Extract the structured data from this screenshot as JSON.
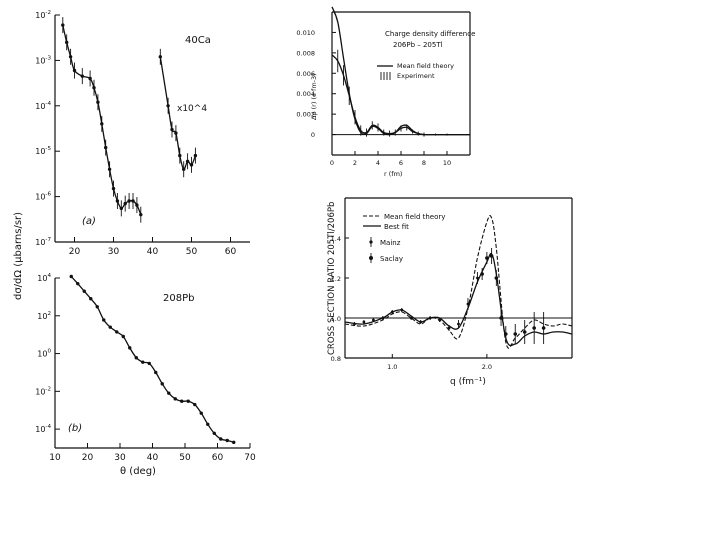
{
  "chart_data": [
    {
      "id": "ca40",
      "type": "scatter",
      "panel_label": "(a)",
      "nucleus": "40Ca",
      "annotation": "x10^4",
      "ylabel": "dσ/dΩ (μbarns/sr)",
      "y_scale": "log",
      "ylim": [
        1e-07,
        0.01
      ],
      "xlim": [
        15,
        65
      ],
      "xticks": [
        20,
        30,
        40,
        50,
        60
      ],
      "yticks": [
        "10^-2",
        "10^-3",
        "10^-4",
        "10^-5",
        "10^-6",
        "10^-7"
      ],
      "series": [
        {
          "points": [
            [
              17,
              0.006
            ],
            [
              18,
              0.0025
            ],
            [
              19,
              0.0012
            ],
            [
              20,
              0.0006
            ],
            [
              22,
              0.00045
            ],
            [
              24,
              0.0004
            ],
            [
              25,
              0.00025
            ],
            [
              26,
              0.00012
            ],
            [
              27,
              4e-05
            ],
            [
              28,
              1.2e-05
            ],
            [
              29,
              4e-06
            ],
            [
              30,
              1.5e-06
            ],
            [
              31,
              8e-07
            ],
            [
              32,
              5.5e-07
            ],
            [
              33,
              7e-07
            ],
            [
              34,
              8e-07
            ],
            [
              35,
              8e-07
            ],
            [
              36,
              6.5e-07
            ],
            [
              37,
              4e-07
            ]
          ]
        },
        {
          "points": [
            [
              42,
              0.0012
            ],
            [
              44,
              0.0001
            ],
            [
              45,
              3e-05
            ],
            [
              46,
              2.5e-05
            ],
            [
              47,
              8e-06
            ],
            [
              48,
              4e-06
            ],
            [
              49,
              6e-06
            ],
            [
              50,
              5e-06
            ],
            [
              51,
              8e-06
            ]
          ]
        }
      ]
    },
    {
      "id": "pb208",
      "type": "scatter",
      "panel_label": "(b)",
      "nucleus": "208Pb",
      "xlabel": "θ (deg)",
      "y_scale": "log",
      "ylim": [
        1e-05,
        10000.0
      ],
      "xlim": [
        10,
        70
      ],
      "xticks": [
        10,
        20,
        30,
        40,
        50,
        60,
        70
      ],
      "yticks": [
        "10^4",
        "10^2",
        "10^0",
        "10^-2",
        "10^-4"
      ],
      "series": [
        {
          "points": [
            [
              15,
              12000
            ],
            [
              17,
              5000
            ],
            [
              19,
              2000
            ],
            [
              21,
              800
            ],
            [
              23,
              300
            ],
            [
              25,
              60
            ],
            [
              27,
              25
            ],
            [
              29,
              14
            ],
            [
              31,
              8
            ],
            [
              33,
              2
            ],
            [
              35,
              0.6
            ],
            [
              37,
              0.35
            ],
            [
              39,
              0.3
            ],
            [
              41,
              0.1
            ],
            [
              43,
              0.025
            ],
            [
              45,
              0.008
            ],
            [
              47,
              0.004
            ],
            [
              49,
              0.003
            ],
            [
              51,
              0.003
            ],
            [
              53,
              0.002
            ],
            [
              55,
              0.0007
            ],
            [
              57,
              0.00018
            ],
            [
              59,
              6e-05
            ],
            [
              61,
              3e-05
            ],
            [
              63,
              2.5e-05
            ],
            [
              65,
              2e-05
            ]
          ]
        }
      ]
    },
    {
      "id": "density",
      "type": "line",
      "title": "Charge density difference",
      "subtitle": "206Pb – 205Tl",
      "xlabel": "r (fm)",
      "ylabel": "Δρ (r) (e fm-3)",
      "xlim": [
        0,
        12
      ],
      "ylim": [
        -0.002,
        0.012
      ],
      "xticks": [
        0,
        2,
        4,
        6,
        8,
        10
      ],
      "yticks": [
        0,
        0.002,
        0.004,
        0.006,
        0.008,
        0.01
      ],
      "legend": [
        "Mean field theory",
        "Experiment"
      ],
      "theory": {
        "x": [
          0,
          0.5,
          1,
          1.5,
          2,
          2.5,
          3,
          3.5,
          4,
          4.5,
          5,
          5.5,
          6,
          6.5,
          7,
          7.5,
          8,
          9,
          10,
          11,
          12
        ],
        "y": [
          0.0125,
          0.011,
          0.0075,
          0.004,
          0.0015,
          0.0002,
          0.0001,
          0.0008,
          0.0006,
          0.0001,
          0,
          0.0002,
          0.0008,
          0.0009,
          0.0004,
          0.0001,
          0,
          0,
          0,
          0,
          0
        ]
      },
      "experiment": {
        "x": [
          0,
          0.5,
          1,
          1.5,
          2,
          2.5,
          3,
          3.5,
          4,
          4.5,
          5,
          5.5,
          6,
          6.5,
          7,
          7.5,
          8,
          9,
          10,
          11,
          12
        ],
        "y": [
          0.0078,
          0.0072,
          0.0058,
          0.0038,
          0.0017,
          0.0004,
          0.0002,
          0.0009,
          0.0007,
          0.0002,
          0.0001,
          0.0002,
          0.0006,
          0.0007,
          0.0003,
          0.0001,
          0,
          0,
          0,
          0,
          0
        ],
        "err": [
          0.0012,
          0.0011,
          0.001,
          0.0009,
          0.0007,
          0.0005,
          0.0004,
          0.0004,
          0.0004,
          0.0003,
          0.0003,
          0.0003,
          0.0003,
          0.0003,
          0.0002,
          0.0002,
          0.0002,
          0.0001,
          0.0001,
          0,
          0
        ]
      }
    },
    {
      "id": "ratio",
      "type": "line",
      "xlabel": "q (fm⁻¹)",
      "ylabel": "CROSS SECTION RATIO 205Tl/206Pb",
      "xlim": [
        0.5,
        2.9
      ],
      "ylim": [
        0.8,
        1.6
      ],
      "xticks": [
        1.0,
        2.0
      ],
      "yticks": [
        0.8,
        1.0,
        1.2,
        1.4
      ],
      "legend": [
        "Mean field theory",
        "Best fit",
        "Mainz",
        "Saclay"
      ],
      "mean_field": {
        "x": [
          0.5,
          0.7,
          0.9,
          1.0,
          1.1,
          1.2,
          1.3,
          1.4,
          1.5,
          1.6,
          1.7,
          1.8,
          1.9,
          2.0,
          2.05,
          2.1,
          2.2,
          2.3,
          2.4,
          2.5,
          2.6,
          2.7,
          2.8,
          2.9
        ],
        "y": [
          0.97,
          0.96,
          0.99,
          1.02,
          1.03,
          1.0,
          0.97,
          1.0,
          0.99,
          0.94,
          0.9,
          1.05,
          1.3,
          1.48,
          1.5,
          1.35,
          0.88,
          0.9,
          0.95,
          0.99,
          0.97,
          0.96,
          0.97,
          0.96
        ]
      },
      "best_fit": {
        "x": [
          0.5,
          0.7,
          0.9,
          1.0,
          1.1,
          1.2,
          1.3,
          1.4,
          1.5,
          1.6,
          1.7,
          1.8,
          1.9,
          2.0,
          2.05,
          2.1,
          2.2,
          2.3,
          2.4,
          2.5,
          2.6,
          2.7,
          2.8,
          2.9
        ],
        "y": [
          0.98,
          0.97,
          1.0,
          1.03,
          1.04,
          1.01,
          0.98,
          1.0,
          1.0,
          0.96,
          0.95,
          1.05,
          1.18,
          1.28,
          1.32,
          1.22,
          0.9,
          0.87,
          0.91,
          0.93,
          0.92,
          0.93,
          0.93,
          0.92
        ]
      },
      "mainz": {
        "x": [
          0.6,
          0.7,
          0.8,
          0.9,
          1.0,
          1.1,
          1.2,
          1.3,
          1.4,
          1.5,
          1.6,
          1.7,
          1.8,
          1.9
        ],
        "y": [
          0.97,
          0.98,
          0.99,
          1.0,
          1.03,
          1.04,
          1.0,
          0.98,
          1.0,
          0.99,
          0.95,
          0.97,
          1.07,
          1.2
        ],
        "err": [
          0.01,
          0.01,
          0.01,
          0.01,
          0.01,
          0.01,
          0.01,
          0.01,
          0.01,
          0.01,
          0.015,
          0.02,
          0.03,
          0.03
        ]
      },
      "saclay": {
        "x": [
          1.95,
          2.0,
          2.05,
          2.1,
          2.15,
          2.2,
          2.3,
          2.4,
          2.5,
          2.6
        ],
        "y": [
          1.22,
          1.3,
          1.31,
          1.2,
          1.0,
          0.92,
          0.92,
          0.93,
          0.95,
          0.95
        ],
        "err": [
          0.03,
          0.03,
          0.04,
          0.04,
          0.04,
          0.04,
          0.05,
          0.06,
          0.08,
          0.08
        ]
      }
    }
  ]
}
